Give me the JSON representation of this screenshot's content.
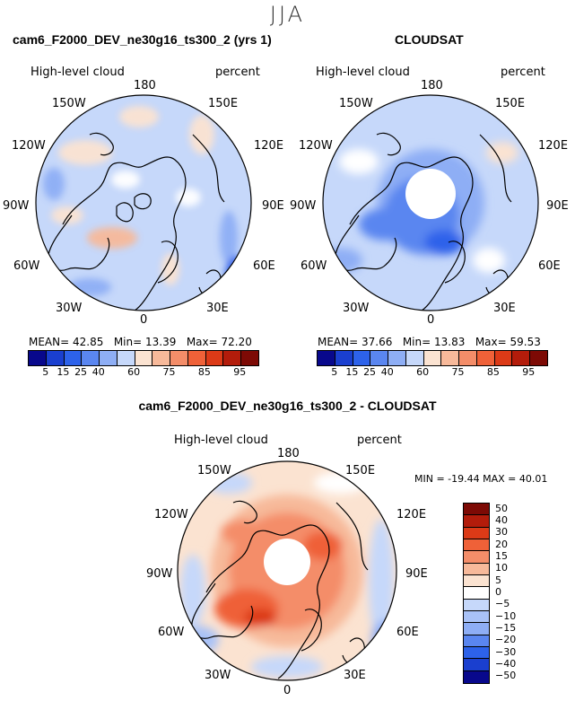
{
  "season": "JJA",
  "panels": [
    {
      "title": "cam6_F2000_DEV_ne30g16_ts300_2 (yrs 1)",
      "variable": "High-level cloud",
      "units": "percent",
      "stats": {
        "mean_label": "MEAN=",
        "mean": "42.85",
        "min_label": "Min=",
        "min": "13.39",
        "max_label": "Max=",
        "max": "72.20"
      }
    },
    {
      "title": "CLOUDSAT",
      "variable": "High-level cloud",
      "units": "percent",
      "stats": {
        "mean_label": "MEAN=",
        "mean": "37.66",
        "min_label": "Min=",
        "min": "13.83",
        "max_label": "Max=",
        "max": "59.53"
      }
    },
    {
      "title": "cam6_F2000_DEV_ne30g16_ts300_2 - CLOUDSAT",
      "variable": "High-level cloud",
      "units": "percent",
      "stats_text": "MIN = -19.44  MAX =  40.01"
    }
  ],
  "longitudes": {
    "top": "180",
    "upper_left": "150W",
    "upper_right": "150E",
    "left_upper": "120W",
    "right_upper": "120E",
    "left": "90W",
    "right": "90E",
    "left_lower": "60W",
    "right_lower": "60E",
    "bottom_left": "30W",
    "bottom_right": "30E",
    "bottom": "0"
  },
  "colorbar_abs": {
    "colors": [
      "#08088c",
      "#1a3fcf",
      "#2d62ea",
      "#5a86f0",
      "#8eaef5",
      "#c6d8fa",
      "#fbe3d1",
      "#f7b99a",
      "#f48d69",
      "#ef6138",
      "#dc3a17",
      "#b31c0b",
      "#7d0a05"
    ],
    "ticks": [
      "5",
      "15",
      "25",
      "40",
      "60",
      "75",
      "85",
      "95"
    ]
  },
  "colorbar_diff": {
    "colors": [
      "#7d0a05",
      "#b31c0b",
      "#dc3a17",
      "#ef6138",
      "#f48d69",
      "#f7b99a",
      "#fbe3d1",
      "#ffffff",
      "#c6d8fa",
      "#a9c2f7",
      "#8eaef5",
      "#5a86f0",
      "#2d62ea",
      "#1a3fcf",
      "#08088c"
    ],
    "ticks": [
      "50",
      "40",
      "30",
      "20",
      "15",
      "10",
      "5",
      "0",
      "−5",
      "−10",
      "−15",
      "−20",
      "−30",
      "−40",
      "−50"
    ]
  }
}
